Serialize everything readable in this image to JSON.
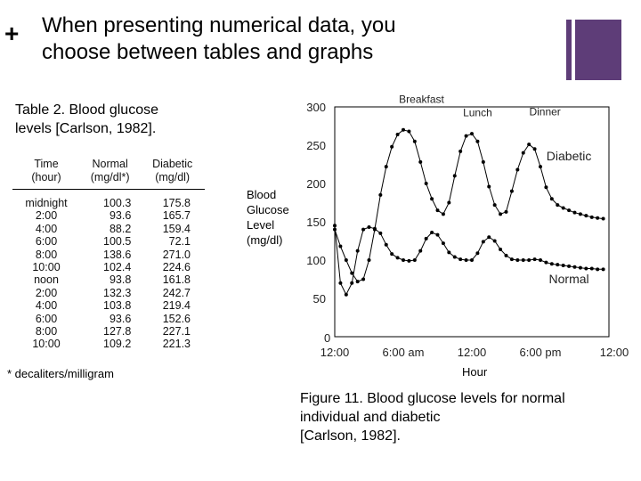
{
  "slide": {
    "bullet": "+",
    "title_line1": "When presenting numerical data, you",
    "title_line2": "choose between tables and graphs",
    "accent_color": "#5e3d78"
  },
  "table": {
    "caption_line1": "Table 2. Blood glucose",
    "caption_line2": "levels [Carlson, 1982].",
    "headers": [
      {
        "line1": "Time",
        "line2": "(hour)"
      },
      {
        "line1": "Normal",
        "line2": "(mg/dl*)"
      },
      {
        "line1": "Diabetic",
        "line2": "(mg/dl)"
      }
    ],
    "rows": [
      [
        "midnight",
        "100.3",
        "175.8"
      ],
      [
        "2:00",
        "93.6",
        "165.7"
      ],
      [
        "4:00",
        "88.2",
        "159.4"
      ],
      [
        "6:00",
        "100.5",
        "72.1"
      ],
      [
        "8:00",
        "138.6",
        "271.0"
      ],
      [
        "10:00",
        "102.4",
        "224.6"
      ],
      [
        "noon",
        "93.8",
        "161.8"
      ],
      [
        "2:00",
        "132.3",
        "242.7"
      ],
      [
        "4:00",
        "103.8",
        "219.4"
      ],
      [
        "6:00",
        "93.6",
        "152.6"
      ],
      [
        "8:00",
        "127.8",
        "227.1"
      ],
      [
        "10:00",
        "109.2",
        "221.3"
      ]
    ],
    "footnote": "* decaliters/milligram"
  },
  "chart_data": {
    "type": "line",
    "title": "",
    "xlabel": "Hour",
    "ylabel_lines": [
      "Blood",
      "Glucose",
      "Level",
      "(mg/dl)"
    ],
    "xlim": [
      0,
      24
    ],
    "ylim": [
      0,
      300
    ],
    "yticks": [
      0,
      50,
      100,
      150,
      200,
      250,
      300
    ],
    "ytick_labels": [
      "0",
      "50",
      "100",
      "150",
      "200",
      "250",
      "300"
    ],
    "xticks": [
      0,
      6,
      12,
      18,
      24
    ],
    "xtick_labels": [
      "12:00",
      "6:00 am",
      "12:00",
      "6:00 pm",
      "12:00"
    ],
    "zero_label": "0",
    "meal_annotations": [
      {
        "label": "Breakfast",
        "x": 7.6,
        "y": 305
      },
      {
        "label": "Lunch",
        "x": 12.5,
        "y": 288
      },
      {
        "label": "Dinner",
        "x": 18.4,
        "y": 289
      }
    ],
    "series": [
      {
        "name": "Diabetic",
        "label_pos": [
          20.5,
          230
        ],
        "x": [
          0,
          0.5,
          1,
          1.5,
          2,
          2.5,
          3,
          3.5,
          4,
          4.5,
          5,
          5.5,
          6,
          6.5,
          7,
          7.5,
          8,
          8.5,
          9,
          9.5,
          10,
          10.5,
          11,
          11.5,
          12,
          12.5,
          13,
          13.5,
          14,
          14.5,
          15,
          15.5,
          16,
          16.5,
          17,
          17.5,
          18,
          18.5,
          19,
          19.5,
          20,
          20.5,
          21,
          21.5,
          22,
          22.5,
          23,
          23.5
        ],
        "values": [
          140,
          118,
          100,
          83,
          72,
          75,
          100,
          140,
          185,
          222,
          248,
          264,
          270,
          268,
          255,
          228,
          200,
          180,
          165,
          160,
          175,
          210,
          242,
          262,
          265,
          255,
          228,
          196,
          172,
          160,
          163,
          190,
          218,
          240,
          251,
          245,
          222,
          195,
          180,
          172,
          168,
          165,
          162,
          160,
          158,
          156,
          155,
          154
        ]
      },
      {
        "name": "Normal",
        "label_pos": [
          20.5,
          70
        ],
        "x": [
          0,
          0.5,
          1,
          1.5,
          2,
          2.5,
          3,
          3.5,
          4,
          4.5,
          5,
          5.5,
          6,
          6.5,
          7,
          7.5,
          8,
          8.5,
          9,
          9.5,
          10,
          10.5,
          11,
          11.5,
          12,
          12.5,
          13,
          13.5,
          14,
          14.5,
          15,
          15.5,
          16,
          16.5,
          17,
          17.5,
          18,
          18.5,
          19,
          19.5,
          20,
          20.5,
          21,
          21.5,
          22,
          22.5,
          23,
          23.5
        ],
        "values": [
          145,
          70,
          55,
          70,
          112,
          140,
          143,
          141,
          135,
          120,
          108,
          103,
          100,
          99,
          100,
          112,
          128,
          136,
          133,
          122,
          110,
          104,
          101,
          100,
          100,
          109,
          124,
          130,
          125,
          114,
          106,
          101,
          100,
          100,
          100,
          101,
          100,
          97,
          95,
          94,
          93,
          92,
          91,
          90,
          89,
          89,
          88,
          88
        ]
      }
    ]
  }
}
